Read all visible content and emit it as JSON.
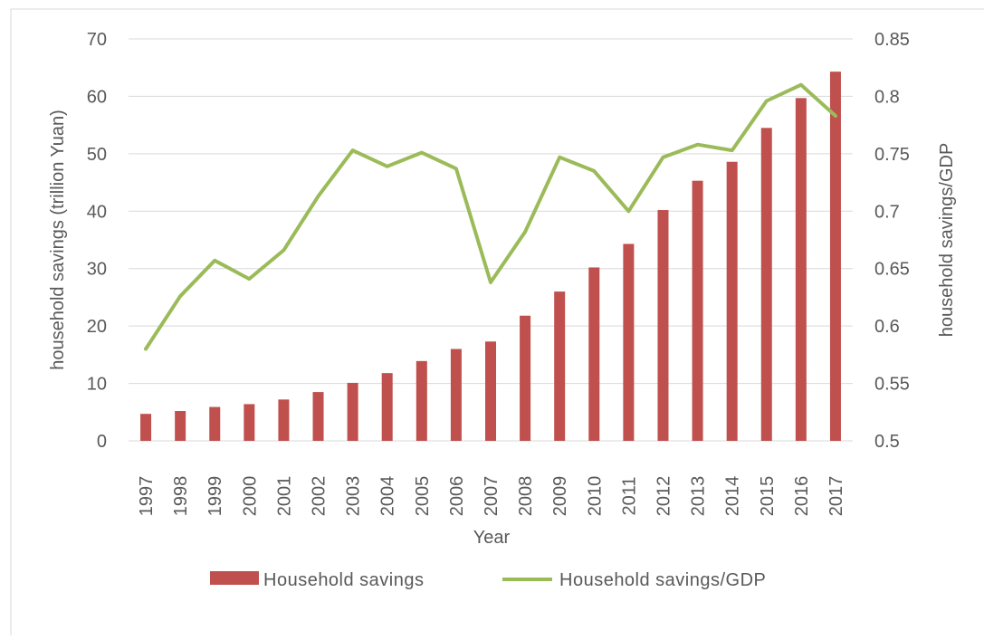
{
  "chart_data": {
    "type": "bar+line",
    "title": "",
    "xlabel": "Year",
    "ylabel": "household savings (trillion Yuan)",
    "y2label": "household savings/GDP",
    "ylim": [
      0,
      70
    ],
    "y2lim": [
      0.5,
      0.85
    ],
    "yticks": [
      "0",
      "10",
      "20",
      "30",
      "40",
      "50",
      "60",
      "70"
    ],
    "y2ticks": [
      "0.5",
      "0.55",
      "0.6",
      "0.65",
      "0.7",
      "0.75",
      "0.8",
      "0.85"
    ],
    "categories": [
      "1997",
      "1998",
      "1999",
      "2000",
      "2001",
      "2002",
      "2003",
      "2004",
      "2005",
      "2006",
      "2007",
      "2008",
      "2009",
      "2010",
      "2011",
      "2012",
      "2013",
      "2014",
      "2015",
      "2016",
      "2017"
    ],
    "grid": true,
    "legend_position": "bottom",
    "series": [
      {
        "name": "Household savings",
        "type": "bar",
        "axis": "left",
        "color": "#C0504D",
        "values": [
          4.7,
          5.2,
          5.9,
          6.4,
          7.2,
          8.5,
          10.1,
          11.8,
          13.9,
          16.0,
          17.3,
          21.8,
          26.0,
          30.2,
          34.3,
          40.2,
          45.3,
          48.6,
          54.5,
          59.7,
          64.3
        ]
      },
      {
        "name": "Household savings/GDP",
        "type": "line",
        "axis": "right",
        "color": "#9BBB59",
        "values": [
          0.58,
          0.626,
          0.657,
          0.641,
          0.666,
          0.713,
          0.753,
          0.739,
          0.751,
          0.737,
          0.638,
          0.682,
          0.747,
          0.735,
          0.7,
          0.747,
          0.758,
          0.753,
          0.796,
          0.81,
          0.783
        ]
      }
    ]
  }
}
